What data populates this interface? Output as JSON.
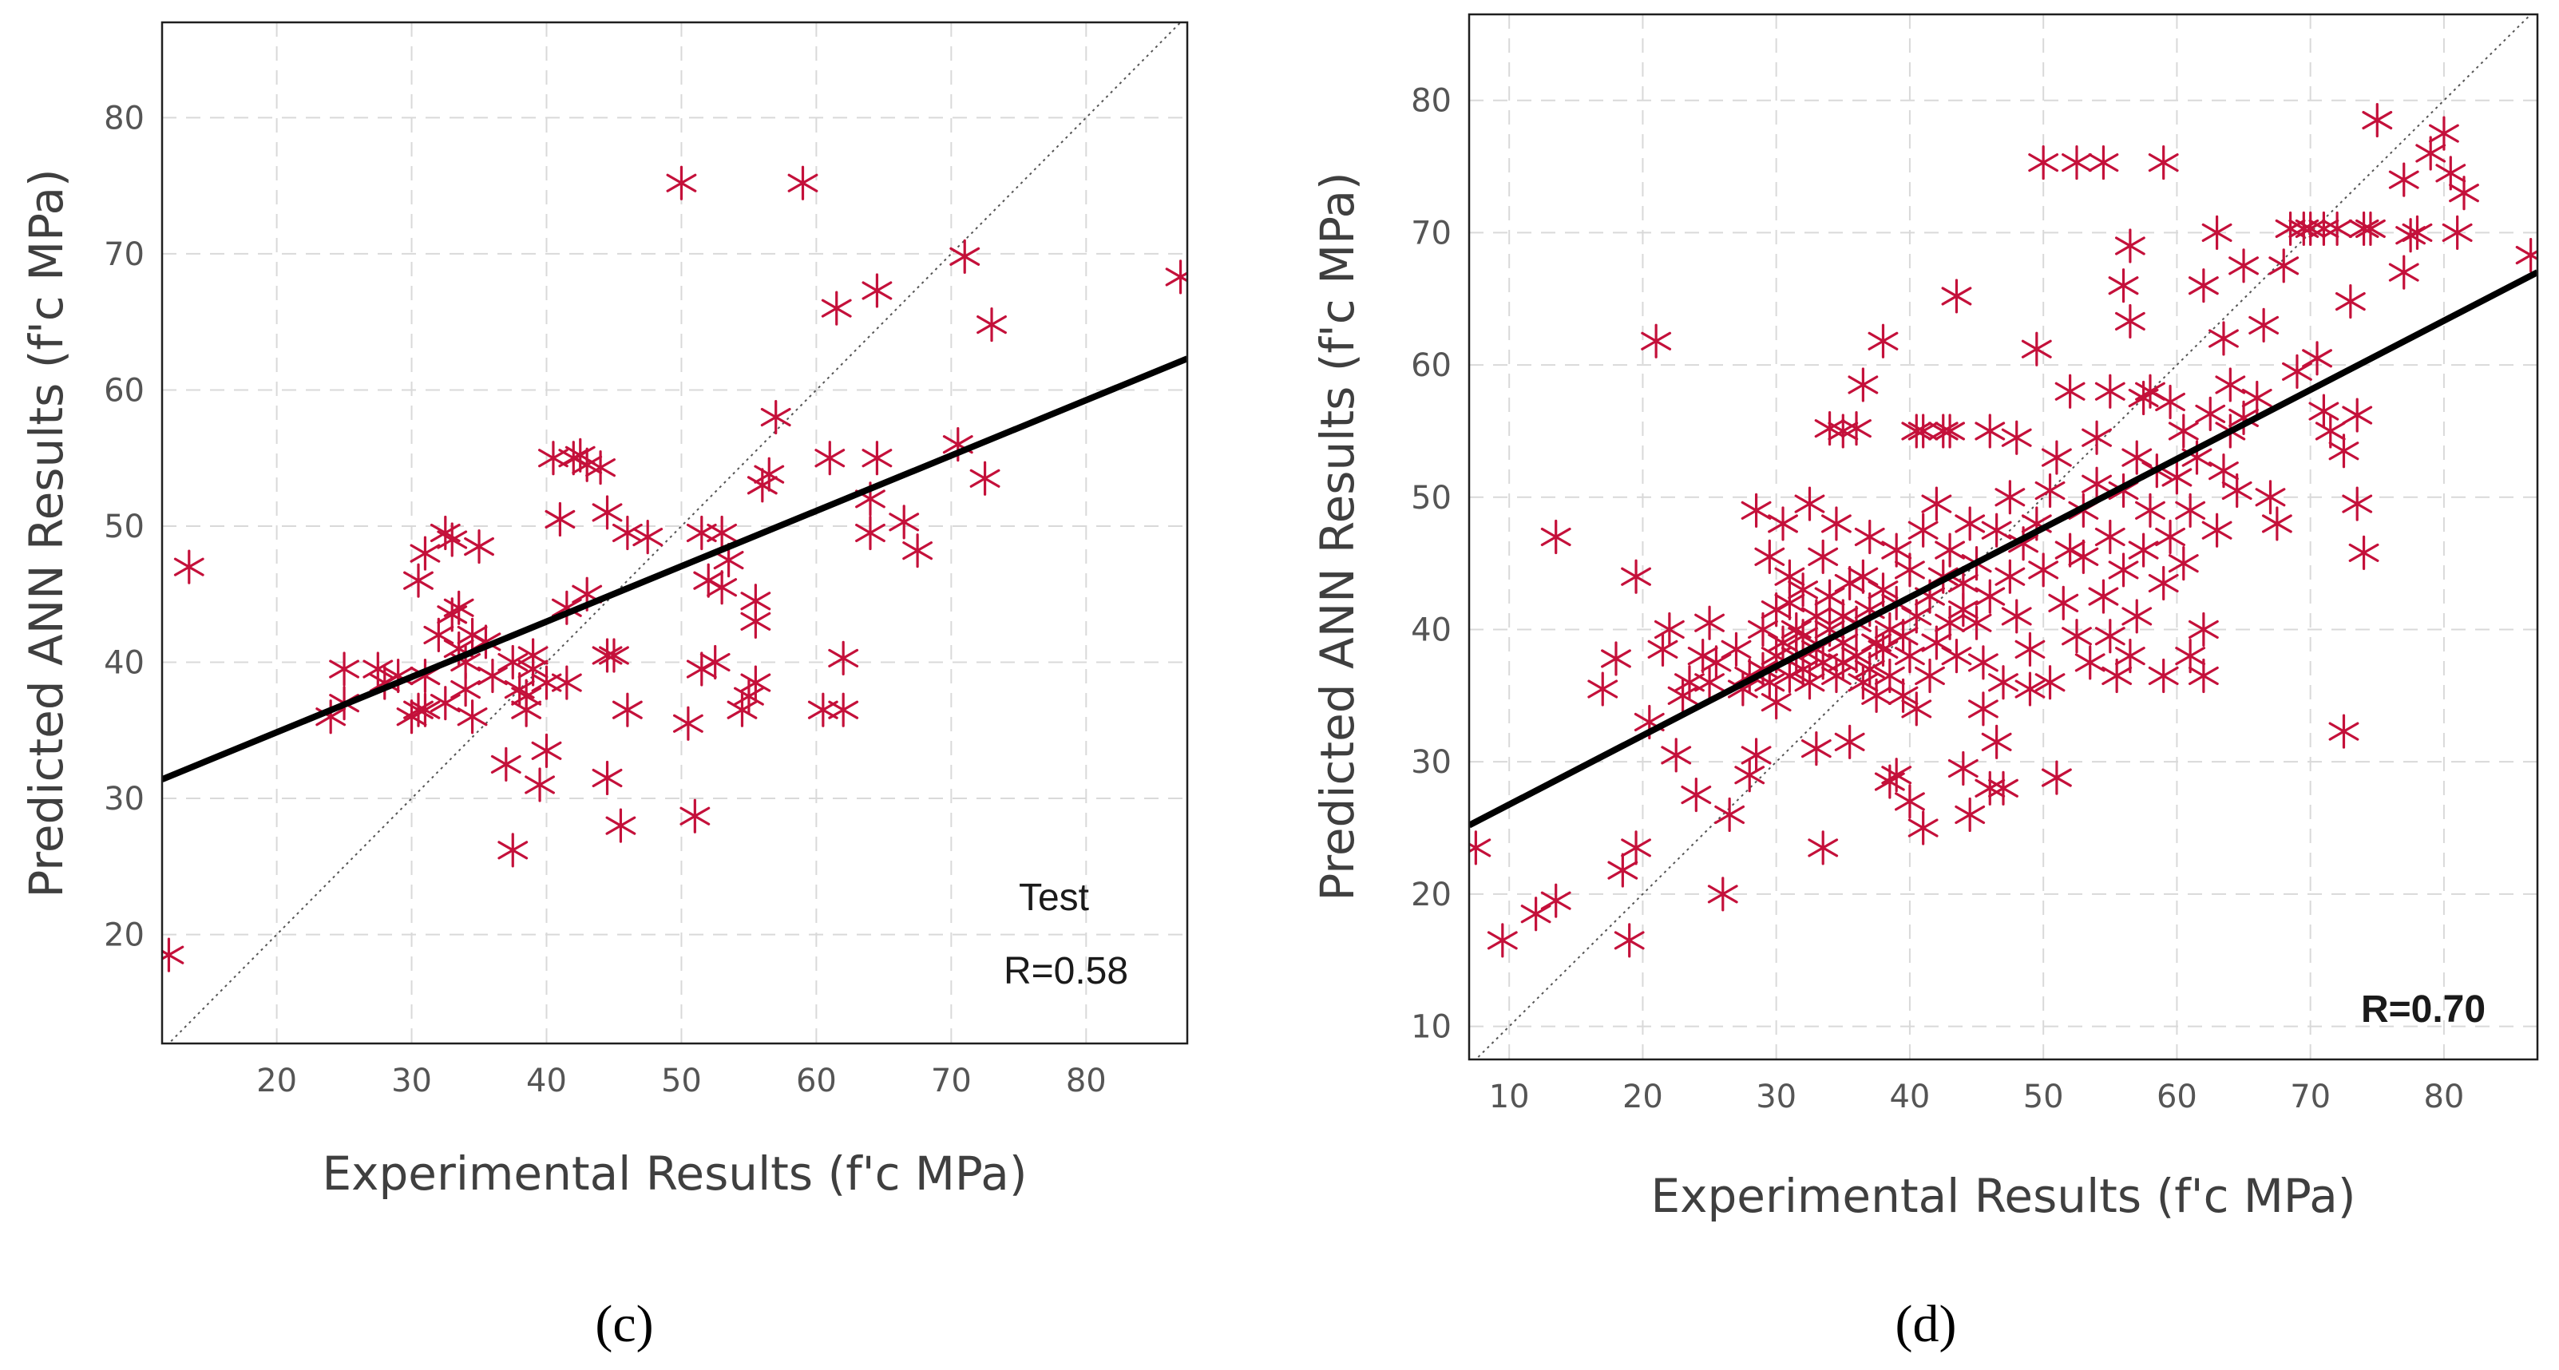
{
  "colors": {
    "marker": "#C4103A",
    "fit_line": "#000000",
    "grid": "#d9d9d9"
  },
  "chart_data": [
    {
      "type": "scatter",
      "panel_label": "(c)",
      "annotation_title": "Test",
      "annotation_r": "R=0.58",
      "xlabel": "Experimental Results (f'c MPa)",
      "ylabel": "Predicted ANN Results (f'c MPa)",
      "xlim": [
        11.5,
        87.5
      ],
      "ylim": [
        12,
        87
      ],
      "xticks": [
        20,
        30,
        40,
        50,
        60,
        70,
        80
      ],
      "yticks": [
        20,
        30,
        40,
        50,
        60,
        70,
        80
      ],
      "grid": true,
      "identity_line": true,
      "fit_line": {
        "x": [
          11.5,
          87.5
        ],
        "y": [
          31.4,
          62.3
        ]
      },
      "points": [
        [
          12,
          18.5
        ],
        [
          13.5,
          47
        ],
        [
          24,
          36
        ],
        [
          25,
          39.5
        ],
        [
          25,
          37
        ],
        [
          27.5,
          39.5
        ],
        [
          28,
          38.5
        ],
        [
          29,
          39
        ],
        [
          30,
          36
        ],
        [
          30.5,
          46
        ],
        [
          30.5,
          36.5
        ],
        [
          31,
          48
        ],
        [
          31,
          39
        ],
        [
          31,
          36.5
        ],
        [
          32,
          42
        ],
        [
          32.5,
          49.5
        ],
        [
          32.5,
          37
        ],
        [
          33,
          49
        ],
        [
          33,
          43.5
        ],
        [
          33.5,
          41
        ],
        [
          33.5,
          44
        ],
        [
          34,
          40
        ],
        [
          34,
          38
        ],
        [
          34.5,
          36
        ],
        [
          34.5,
          42
        ],
        [
          35,
          48.5
        ],
        [
          35.5,
          41.5
        ],
        [
          36,
          39
        ],
        [
          37,
          32.5
        ],
        [
          37.5,
          40
        ],
        [
          37.5,
          26.2
        ],
        [
          38,
          38
        ],
        [
          38.5,
          36.5
        ],
        [
          38.5,
          37.5
        ],
        [
          39,
          39.5
        ],
        [
          39,
          40.5
        ],
        [
          39.5,
          31
        ],
        [
          40,
          33.5
        ],
        [
          40,
          38.5
        ],
        [
          40.5,
          55
        ],
        [
          41,
          50.5
        ],
        [
          41.5,
          44
        ],
        [
          41.5,
          38.5
        ],
        [
          42,
          55
        ],
        [
          42.5,
          55.2
        ],
        [
          43,
          45
        ],
        [
          43,
          54.5
        ],
        [
          44,
          54.3
        ],
        [
          44.5,
          51
        ],
        [
          44.5,
          40.5
        ],
        [
          44.5,
          31.5
        ],
        [
          45,
          40.5
        ],
        [
          45.5,
          28
        ],
        [
          46,
          36.5
        ],
        [
          46,
          49.5
        ],
        [
          47.5,
          49.2
        ],
        [
          50,
          75.2
        ],
        [
          50.5,
          35.5
        ],
        [
          51,
          28.7
        ],
        [
          51.5,
          49.5
        ],
        [
          51.5,
          39.5
        ],
        [
          52,
          46
        ],
        [
          52.5,
          40
        ],
        [
          53,
          49.5
        ],
        [
          53,
          45.5
        ],
        [
          53.5,
          47.5
        ],
        [
          54.5,
          36.5
        ],
        [
          55,
          37.5
        ],
        [
          55.5,
          38.5
        ],
        [
          55.5,
          43
        ],
        [
          55.5,
          44.5
        ],
        [
          56,
          53
        ],
        [
          56.5,
          53.8
        ],
        [
          57,
          58
        ],
        [
          59,
          75.2
        ],
        [
          60.5,
          36.5
        ],
        [
          61,
          55
        ],
        [
          61.5,
          66
        ],
        [
          62,
          36.5
        ],
        [
          62,
          40.3
        ],
        [
          64,
          49.5
        ],
        [
          64,
          52
        ],
        [
          64.5,
          55
        ],
        [
          64.5,
          67.3
        ],
        [
          66.5,
          50.3
        ],
        [
          67.5,
          48.2
        ],
        [
          70.5,
          56
        ],
        [
          71,
          69.8
        ],
        [
          72.5,
          53.5
        ],
        [
          73,
          64.8
        ],
        [
          87,
          68.3
        ]
      ]
    },
    {
      "type": "scatter",
      "panel_label": "(d)",
      "annotation_r": "R=0.70",
      "xlabel": "Experimental Results (f'c MPa)",
      "ylabel": "Predicted ANN Results (f'c MPa)",
      "xlim": [
        7,
        87
      ],
      "ylim": [
        7.5,
        86.5
      ],
      "xticks": [
        10,
        20,
        30,
        40,
        50,
        60,
        70,
        80
      ],
      "yticks": [
        10,
        20,
        30,
        40,
        50,
        60,
        70,
        80
      ],
      "grid": true,
      "identity_line": true,
      "fit_line": {
        "x": [
          7,
          87
        ],
        "y": [
          25.2,
          67.0
        ]
      },
      "points": [
        [
          7.5,
          23.5
        ],
        [
          9.5,
          16.5
        ],
        [
          12,
          18.5
        ],
        [
          13.5,
          19.5
        ],
        [
          13.5,
          47
        ],
        [
          17,
          35.5
        ],
        [
          18,
          37.8
        ],
        [
          18.5,
          21.8
        ],
        [
          19,
          16.5
        ],
        [
          19.5,
          44
        ],
        [
          19.5,
          23.5
        ],
        [
          20.5,
          33
        ],
        [
          21,
          61.8
        ],
        [
          21.5,
          38.5
        ],
        [
          22,
          40
        ],
        [
          22.5,
          30.5
        ],
        [
          23,
          35
        ],
        [
          23.5,
          36
        ],
        [
          24,
          27.5
        ],
        [
          24.5,
          38
        ],
        [
          25,
          36
        ],
        [
          25,
          40.5
        ],
        [
          25.5,
          37.5
        ],
        [
          26,
          20
        ],
        [
          26.5,
          26
        ],
        [
          27,
          38.5
        ],
        [
          27.5,
          35.5
        ],
        [
          28,
          36.5
        ],
        [
          28,
          29
        ],
        [
          28.5,
          30.5
        ],
        [
          28.5,
          49
        ],
        [
          29,
          40
        ],
        [
          29,
          37
        ],
        [
          29.5,
          36
        ],
        [
          29.5,
          45.5
        ],
        [
          30,
          38
        ],
        [
          30,
          41.5
        ],
        [
          30,
          34.5
        ],
        [
          30.5,
          48
        ],
        [
          30.5,
          39
        ],
        [
          31,
          44
        ],
        [
          31,
          36.5
        ],
        [
          31,
          42
        ],
        [
          31.5,
          38
        ],
        [
          31.5,
          40
        ],
        [
          32,
          37
        ],
        [
          32,
          43
        ],
        [
          32,
          39.5
        ],
        [
          32.5,
          49.5
        ],
        [
          32.5,
          36
        ],
        [
          33,
          41
        ],
        [
          33,
          38.5
        ],
        [
          33,
          31
        ],
        [
          33.5,
          23.5
        ],
        [
          33.5,
          45.5
        ],
        [
          33.5,
          37.5
        ],
        [
          34,
          55.2
        ],
        [
          34,
          40
        ],
        [
          34,
          42.5
        ],
        [
          34.5,
          36.5
        ],
        [
          34.5,
          48
        ],
        [
          35,
          55
        ],
        [
          35,
          39
        ],
        [
          35,
          41
        ],
        [
          35,
          37.5
        ],
        [
          35.5,
          31.5
        ],
        [
          35.5,
          43.5
        ],
        [
          36,
          55.2
        ],
        [
          36,
          38
        ],
        [
          36,
          40.5
        ],
        [
          36.5,
          58.5
        ],
        [
          36.5,
          44
        ],
        [
          36.5,
          36
        ],
        [
          37,
          37
        ],
        [
          37,
          41.5
        ],
        [
          37,
          47
        ],
        [
          37.5,
          39
        ],
        [
          37.5,
          35
        ],
        [
          38,
          38.5
        ],
        [
          38,
          43
        ],
        [
          38,
          61.8
        ],
        [
          38.5,
          28.5
        ],
        [
          38.5,
          40
        ],
        [
          38.5,
          36.5
        ],
        [
          39,
          29
        ],
        [
          39,
          42
        ],
        [
          39,
          46
        ],
        [
          39.5,
          35
        ],
        [
          39.5,
          39.5
        ],
        [
          40,
          27
        ],
        [
          40,
          44.5
        ],
        [
          40,
          38
        ],
        [
          40.5,
          55
        ],
        [
          40.5,
          34
        ],
        [
          40.5,
          41
        ],
        [
          41,
          25
        ],
        [
          41,
          47.5
        ],
        [
          41,
          55
        ],
        [
          41.5,
          36.5
        ],
        [
          41.5,
          42.5
        ],
        [
          42,
          49.5
        ],
        [
          42,
          39
        ],
        [
          42.5,
          55
        ],
        [
          42.5,
          44
        ],
        [
          43,
          40.5
        ],
        [
          43,
          46
        ],
        [
          43,
          55
        ],
        [
          43.5,
          65.2
        ],
        [
          43.5,
          38
        ],
        [
          44,
          41.5
        ],
        [
          44,
          29.5
        ],
        [
          44,
          43.5
        ],
        [
          44.5,
          26
        ],
        [
          44.5,
          48
        ],
        [
          45,
          40.5
        ],
        [
          45,
          45
        ],
        [
          45.5,
          34
        ],
        [
          45.5,
          37.5
        ],
        [
          46,
          28
        ],
        [
          46,
          42.5
        ],
        [
          46,
          55
        ],
        [
          46.5,
          31.5
        ],
        [
          46.5,
          47.5
        ],
        [
          47,
          28
        ],
        [
          47,
          36
        ],
        [
          47.5,
          44
        ],
        [
          47.5,
          50
        ],
        [
          48,
          54.5
        ],
        [
          48,
          41
        ],
        [
          48.5,
          46.5
        ],
        [
          49,
          35.5
        ],
        [
          49,
          38.5
        ],
        [
          49.5,
          48
        ],
        [
          49.5,
          61.2
        ],
        [
          50,
          75.3
        ],
        [
          50,
          44.5
        ],
        [
          50.5,
          36
        ],
        [
          50.5,
          50.5
        ],
        [
          51,
          28.8
        ],
        [
          51,
          53
        ],
        [
          51.5,
          42
        ],
        [
          52,
          46
        ],
        [
          52,
          58
        ],
        [
          52.5,
          75.3
        ],
        [
          52.5,
          39.5
        ],
        [
          53,
          49
        ],
        [
          53,
          45.5
        ],
        [
          53.5,
          37.5
        ],
        [
          54,
          54.5
        ],
        [
          54,
          51
        ],
        [
          54.5,
          75.3
        ],
        [
          54.5,
          42.5
        ],
        [
          55,
          58
        ],
        [
          55,
          47
        ],
        [
          55,
          39.5
        ],
        [
          55.5,
          36.5
        ],
        [
          56,
          66
        ],
        [
          56,
          44.5
        ],
        [
          56,
          50.5
        ],
        [
          56.5,
          69
        ],
        [
          56.5,
          38
        ],
        [
          56.5,
          63.3
        ],
        [
          57,
          53
        ],
        [
          57,
          41
        ],
        [
          57.5,
          57.5
        ],
        [
          57.5,
          46
        ],
        [
          58,
          49
        ],
        [
          58,
          58
        ],
        [
          58.5,
          52
        ],
        [
          59,
          75.3
        ],
        [
          59,
          36.5
        ],
        [
          59,
          43.5
        ],
        [
          59.5,
          57.2
        ],
        [
          59.5,
          47
        ],
        [
          60,
          51.5
        ],
        [
          60.5,
          45
        ],
        [
          60.5,
          55
        ],
        [
          61,
          38
        ],
        [
          61,
          49
        ],
        [
          61.5,
          53
        ],
        [
          62,
          66
        ],
        [
          62,
          36.5
        ],
        [
          62,
          40
        ],
        [
          62.5,
          56.3
        ],
        [
          63,
          47.5
        ],
        [
          63,
          70
        ],
        [
          63.5,
          52
        ],
        [
          63.5,
          62
        ],
        [
          64,
          55
        ],
        [
          64,
          58.5
        ],
        [
          64.5,
          50.5
        ],
        [
          65,
          67.5
        ],
        [
          65,
          56
        ],
        [
          66,
          57.5
        ],
        [
          66.5,
          63
        ],
        [
          67,
          50
        ],
        [
          67.5,
          48
        ],
        [
          68,
          67.5
        ],
        [
          68.5,
          70.3
        ],
        [
          69,
          59.5
        ],
        [
          69.5,
          70.3
        ],
        [
          70,
          70.3
        ],
        [
          70.5,
          60.5
        ],
        [
          71,
          70.3
        ],
        [
          71,
          56.5
        ],
        [
          71.5,
          55
        ],
        [
          72,
          70.3
        ],
        [
          72.5,
          32.3
        ],
        [
          72.5,
          53.5
        ],
        [
          73,
          64.8
        ],
        [
          73.5,
          49.5
        ],
        [
          73.5,
          56.2
        ],
        [
          74,
          70.3
        ],
        [
          74,
          45.8
        ],
        [
          74.5,
          70.3
        ],
        [
          75,
          78.5
        ],
        [
          77,
          67
        ],
        [
          77,
          74
        ],
        [
          77.5,
          69.8
        ],
        [
          78,
          70
        ],
        [
          79,
          76
        ],
        [
          80,
          77.5
        ],
        [
          80.5,
          74.5
        ],
        [
          81,
          70
        ],
        [
          81.5,
          73
        ],
        [
          86.5,
          68.3
        ]
      ]
    }
  ]
}
